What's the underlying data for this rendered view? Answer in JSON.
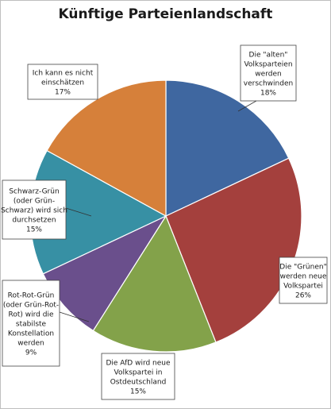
{
  "chart_data": {
    "type": "pie",
    "title": "Künftige Parteienlandschaft",
    "slices": [
      {
        "lines": [
          "Die \"alten\"",
          "Volksparteien",
          "werden",
          "verschwinden"
        ],
        "pct_label": "18%",
        "value": 18,
        "color": "#3f67a0"
      },
      {
        "lines": [
          "Die \"Grünen\"",
          "werden neue",
          "Volkspartei"
        ],
        "pct_label": "26%",
        "value": 26,
        "color": "#a4403d"
      },
      {
        "lines": [
          "Die AfD wird neue",
          "Volkspartei in",
          "Ostdeutschland"
        ],
        "pct_label": "15%",
        "value": 15,
        "color": "#83a24a"
      },
      {
        "lines": [
          "Rot-Rot-Grün",
          "(oder Grün-Rot-",
          "Rot) wird die",
          "stabilste",
          "Konstellation",
          "werden"
        ],
        "pct_label": "9%",
        "value": 9,
        "color": "#6a4f8c"
      },
      {
        "lines": [
          "Schwarz-Grün",
          "(oder Grün-",
          "Schwarz) wird sich",
          "durchsetzen"
        ],
        "pct_label": "15%",
        "value": 15,
        "color": "#3790a4"
      },
      {
        "lines": [
          "Ich kann es nicht",
          "einschätzen"
        ],
        "pct_label": "17%",
        "value": 17,
        "color": "#d6803a"
      }
    ],
    "start_angle_deg": 0,
    "direction": "clockwise",
    "legend": "none"
  }
}
